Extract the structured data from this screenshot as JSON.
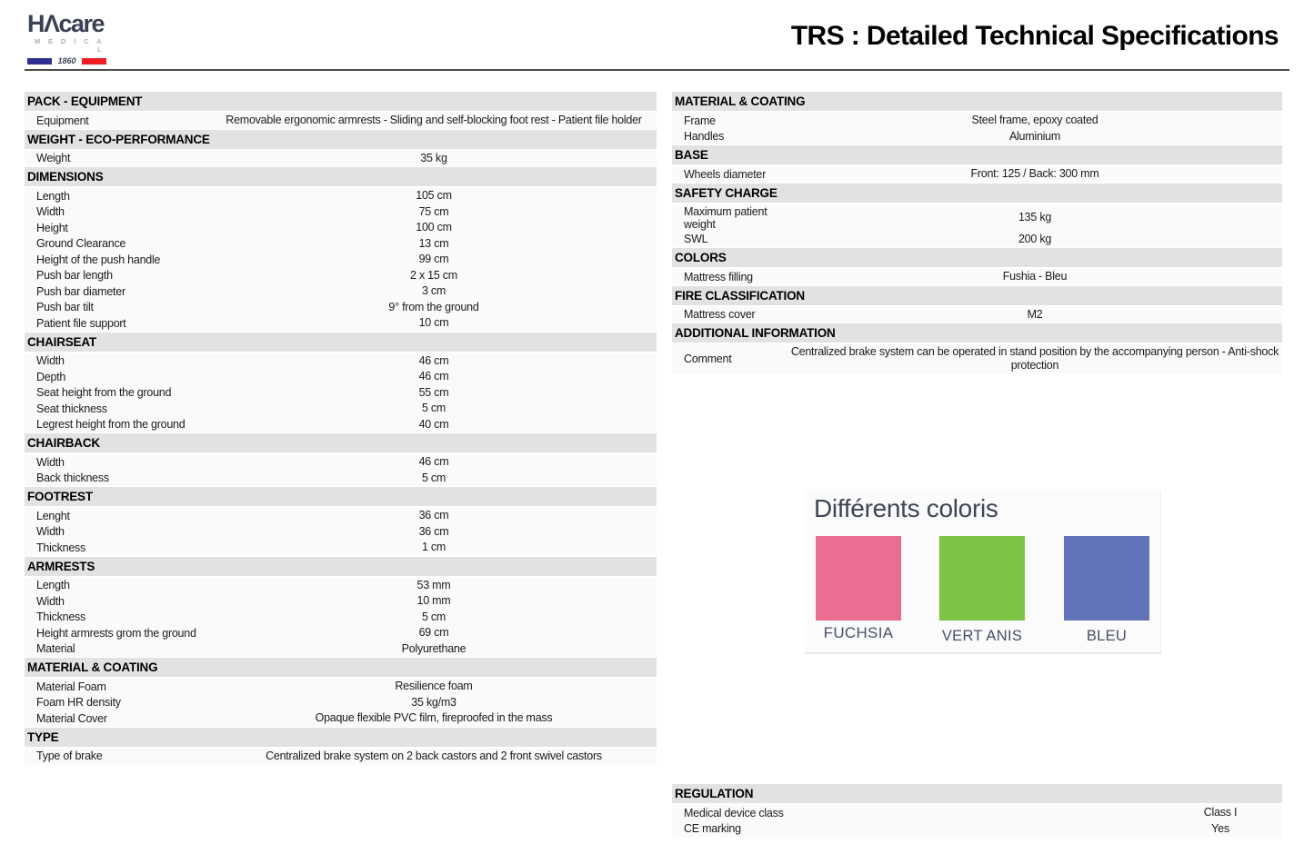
{
  "logo": {
    "brand": "HΛcare",
    "sub": "M E D I C A L",
    "year": "1860",
    "navy": "#2e3192",
    "red": "#ee1c25"
  },
  "header": {
    "title": "TRS : Detailed Technical Specifications"
  },
  "left_sections": [
    {
      "title": "PACK - EQUIPMENT",
      "rows": [
        {
          "label": "Equipment",
          "value": "Removable ergonomic armrests - Sliding and self-blocking foot rest - Patient file holder"
        }
      ]
    },
    {
      "title": "WEIGHT - ECO-PERFORMANCE",
      "rows": [
        {
          "label": "Weight",
          "value": "35 kg"
        }
      ]
    },
    {
      "title": "DIMENSIONS",
      "rows": [
        {
          "label": "Length",
          "value": "105 cm"
        },
        {
          "label": "Width",
          "value": "75 cm"
        },
        {
          "label": "Height",
          "value": "100 cm"
        },
        {
          "label": "Ground Clearance",
          "value": "13 cm"
        },
        {
          "label": "Height of the push handle",
          "value": "99 cm"
        },
        {
          "label": "Push bar length",
          "value": "2 x 15 cm"
        },
        {
          "label": "Push bar diameter",
          "value": "3 cm"
        },
        {
          "label": "Push bar tilt",
          "value": "9° from the ground"
        },
        {
          "label": "Patient file support",
          "value": "10 cm"
        }
      ]
    },
    {
      "title": "CHAIRSEAT",
      "rows": [
        {
          "label": "Width",
          "value": "46 cm"
        },
        {
          "label": "Depth",
          "value": "46 cm"
        },
        {
          "label": "Seat height from the ground",
          "value": "55 cm"
        },
        {
          "label": "Seat thickness",
          "value": "5 cm"
        },
        {
          "label": "Legrest height from the ground",
          "value": "40 cm"
        }
      ]
    },
    {
      "title": "CHAIRBACK",
      "rows": [
        {
          "label": "Width",
          "value": "46 cm"
        },
        {
          "label": "Back thickness",
          "value": "5 cm"
        }
      ]
    },
    {
      "title": "FOOTREST",
      "rows": [
        {
          "label": "Lenght",
          "value": "36 cm"
        },
        {
          "label": "Width",
          "value": "36 cm"
        },
        {
          "label": "Thickness",
          "value": "1 cm"
        }
      ]
    },
    {
      "title": "ARMRESTS",
      "rows": [
        {
          "label": "Length",
          "value": "53 mm"
        },
        {
          "label": "Width",
          "value": "10 mm"
        },
        {
          "label": "Thickness",
          "value": "5 cm"
        },
        {
          "label": "Height armrests grom the ground",
          "value": "69 cm"
        },
        {
          "label": "Material",
          "value": "Polyurethane"
        }
      ]
    },
    {
      "title": "MATERIAL & COATING",
      "rows": [
        {
          "label": "Material Foam",
          "value": "Resilience foam"
        },
        {
          "label": "Foam HR density",
          "value": "35 kg/m3"
        },
        {
          "label": "Material Cover",
          "value": "Opaque flexible PVC film, fireproofed in the mass"
        }
      ]
    },
    {
      "title": "TYPE",
      "rows": [
        {
          "label": "Type of brake",
          "value": "Centralized brake system on 2 back castors and 2 front swivel castors"
        }
      ]
    }
  ],
  "right_sections": [
    {
      "title": "MATERIAL & COATING",
      "rows": [
        {
          "label": "Frame",
          "value": "Steel frame, epoxy coated"
        },
        {
          "label": "Handles",
          "value": "Aluminium"
        }
      ]
    },
    {
      "title": "BASE",
      "rows": [
        {
          "label": "Wheels diameter",
          "value": "Front: 125 / Back: 300 mm"
        }
      ]
    },
    {
      "title": "SAFETY CHARGE",
      "rows": [
        {
          "label": "Maximum patient weight",
          "value": "135 kg"
        },
        {
          "label": "SWL",
          "value": "200 kg"
        }
      ]
    },
    {
      "title": "COLORS",
      "rows": [
        {
          "label": "Mattress filling",
          "value": "Fushia - Bleu"
        }
      ]
    },
    {
      "title": "FIRE CLASSIFICATION",
      "rows": [
        {
          "label": "Mattress cover",
          "value": "M2"
        }
      ]
    },
    {
      "title": "ADDITIONAL INFORMATION",
      "rows": [
        {
          "label": "Comment",
          "value": "Centralized brake system can be operated in stand position by the accompanying person - Anti-shock protection"
        }
      ]
    }
  ],
  "regulation_sections": [
    {
      "title": "REGULATION",
      "rows": [
        {
          "label": "Medical device class",
          "value": "Class I"
        },
        {
          "label": "CE marking",
          "value": "Yes"
        }
      ]
    }
  ],
  "coloris": {
    "title": "Différents coloris",
    "swatches": [
      {
        "name": "FUCHSIA",
        "color": "#ec6d92"
      },
      {
        "name": "VERT ANIS",
        "color": "#7cc344"
      },
      {
        "name": "BLEU",
        "color": "#6273b9"
      }
    ]
  }
}
